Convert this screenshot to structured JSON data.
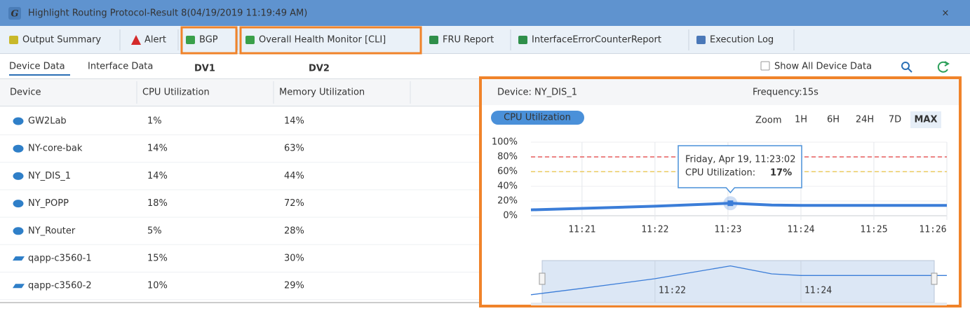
{
  "window": {
    "icon": "G",
    "title": "Highlight Routing Protocol-Result 8(04/19/2019 11:19:49 AM)",
    "close": "×"
  },
  "tabs": [
    "Output Summary",
    "Alert",
    "BGP",
    "Overall Health Monitor [CLI]",
    "FRU Report",
    "InterfaceErrorCounterReport",
    "Execution Log"
  ],
  "annotations": [
    "DV1",
    "DV2"
  ],
  "subtabs": [
    "Device Data",
    "Interface Data"
  ],
  "toolbar": {
    "checkbox": "Show All Device Data"
  },
  "table": {
    "columns": [
      "Device",
      "CPU Utilization",
      "Memory Utilization"
    ],
    "rows": [
      [
        "GW2Lab",
        "1%",
        "14%"
      ],
      [
        "NY-core-bak",
        "14%",
        "63%"
      ],
      [
        "NY_DIS_1",
        "14%",
        "44%"
      ],
      [
        "NY_POPP",
        "18%",
        "72%"
      ],
      [
        "NY_Router",
        "5%",
        "28%"
      ],
      [
        "qapp-c3560-1",
        "15%",
        "30%"
      ],
      [
        "qapp-c3560-2",
        "10%",
        "29%"
      ]
    ],
    "row_icons": [
      "router",
      "router",
      "router",
      "router",
      "router",
      "switch",
      "switch"
    ]
  },
  "panel": {
    "device": "Device: NY_DIS_1",
    "frequency": "Frequency:15s",
    "badge": "CPU Utilization",
    "zoom_label": "Zoom",
    "zoom": [
      "1H",
      "6H",
      "24H",
      "7D",
      "MAX"
    ],
    "zoom_active": 4
  },
  "chart_data": {
    "type": "line",
    "x": [
      680.3,
      681,
      682,
      683.0333,
      683.6,
      684,
      685,
      686
    ],
    "series": [
      {
        "name": "CPU Utilization",
        "color": "#3b7dd8",
        "values": [
          8,
          10,
          13,
          17,
          14.5,
          14,
          14,
          14
        ]
      }
    ],
    "xlim": [
      680.3,
      686.0
    ],
    "xticks": [
      {
        "value": 681,
        "label": "11:21"
      },
      {
        "value": 682,
        "label": "11:22"
      },
      {
        "value": 683,
        "label": "11:23"
      },
      {
        "value": 684,
        "label": "11:24"
      },
      {
        "value": 685,
        "label": "11:25"
      },
      {
        "value": 686,
        "label": "11:26"
      }
    ],
    "ylim": [
      0,
      100
    ],
    "yticks": [
      {
        "value": 0,
        "label": "0%"
      },
      {
        "value": 20,
        "label": "20%"
      },
      {
        "value": 40,
        "label": "40%"
      },
      {
        "value": 60,
        "label": "60%"
      },
      {
        "value": 80,
        "label": "80%"
      },
      {
        "value": 100,
        "label": "100%"
      }
    ],
    "grid": true,
    "thresholds": [
      {
        "value": 80,
        "color": "#e03b3b"
      },
      {
        "value": 60,
        "color": "#e8c040"
      }
    ],
    "tooltip": {
      "point": 3,
      "title": "Friday, Apr 19, 11:23:02",
      "series": "CPU Utilization:",
      "value_label": "17%"
    },
    "navigator": {
      "ylim": [
        6,
        18
      ],
      "xticks": [
        {
          "value": 682,
          "label": "11:22"
        },
        {
          "value": 684,
          "label": "11:24"
        }
      ]
    }
  }
}
